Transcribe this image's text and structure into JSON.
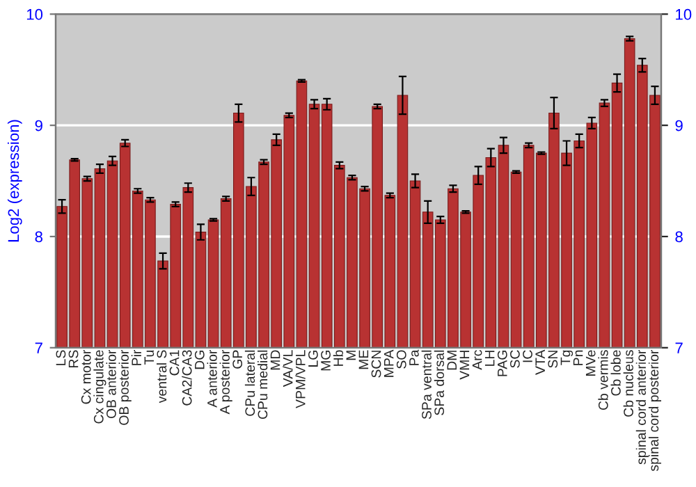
{
  "chart_data": {
    "type": "bar",
    "ylabel": "Log2 (expression)",
    "categories": [
      "LS",
      "RS",
      "Cx motor",
      "Cx cingulate",
      "OB anterior",
      "OB posterior",
      "Pir",
      "Tu",
      "ventral S",
      "CA1",
      "CA2/CA3",
      "DG",
      "A anterior",
      "A posterior",
      "GP",
      "CPu lateral",
      "CPu medial",
      "MD",
      "VA/VL",
      "VPM/VPL",
      "LG",
      "MG",
      "Hb",
      "M",
      "ME",
      "SCN",
      "MPA",
      "SO",
      "Pa",
      "SPa ventral",
      "SPa dorsal",
      "DM",
      "VMH",
      "Arc",
      "LH",
      "PAG",
      "SC",
      "IC",
      "VTA",
      "SN",
      "Tg",
      "Pn",
      "MVe",
      "Cb vermis",
      "Cb lobe",
      "Cb nucleus",
      "spinal cord anterior",
      "spinal cord posterior"
    ],
    "values": [
      8.27,
      8.69,
      8.52,
      8.61,
      8.68,
      8.84,
      8.41,
      8.33,
      7.78,
      8.29,
      8.44,
      8.04,
      8.15,
      8.34,
      9.11,
      8.45,
      8.67,
      8.87,
      9.09,
      9.4,
      9.19,
      9.19,
      8.64,
      8.53,
      8.43,
      9.17,
      8.37,
      9.27,
      8.5,
      8.22,
      8.15,
      8.43,
      8.22,
      8.55,
      8.71,
      8.82,
      8.58,
      8.82,
      8.75,
      9.11,
      8.75,
      8.86,
      9.02,
      9.2,
      9.38,
      9.78,
      9.54,
      9.27
    ],
    "errors": [
      0.06,
      0.01,
      0.02,
      0.04,
      0.04,
      0.03,
      0.02,
      0.02,
      0.07,
      0.02,
      0.04,
      0.07,
      0.01,
      0.02,
      0.08,
      0.08,
      0.02,
      0.05,
      0.02,
      0.01,
      0.04,
      0.05,
      0.03,
      0.02,
      0.02,
      0.02,
      0.02,
      0.17,
      0.06,
      0.1,
      0.03,
      0.03,
      0.01,
      0.08,
      0.08,
      0.07,
      0.01,
      0.02,
      0.01,
      0.14,
      0.11,
      0.06,
      0.05,
      0.03,
      0.08,
      0.02,
      0.06,
      0.08
    ],
    "color": "#b83232",
    "ylim": [
      7,
      10
    ],
    "yticks": [
      7,
      8,
      9,
      10
    ],
    "y2lim": [
      7,
      10
    ],
    "y2ticks": [
      7,
      8,
      9,
      10
    ],
    "grid": "y",
    "legend": false
  }
}
